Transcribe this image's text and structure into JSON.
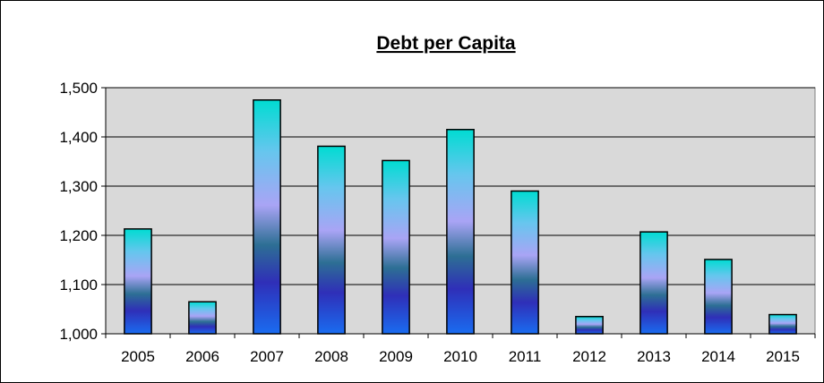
{
  "chart_data": {
    "type": "bar",
    "title": "Debt per Capita",
    "xlabel": "",
    "ylabel": "",
    "categories": [
      "2005",
      "2006",
      "2007",
      "2008",
      "2009",
      "2010",
      "2011",
      "2012",
      "2013",
      "2014",
      "2015"
    ],
    "series": [
      {
        "values": [
          1213,
          1065,
          1475,
          1381,
          1352,
          1415,
          1290,
          1035,
          1207,
          1151,
          1039
        ]
      }
    ],
    "ylim": [
      1000,
      1500
    ],
    "yticks": [
      1000,
      1100,
      1200,
      1300,
      1400,
      1500
    ],
    "ytick_labels": [
      "1,000",
      "1,100",
      "1,200",
      "1,300",
      "1,400",
      "1,500"
    ],
    "grid": true,
    "legend": "none",
    "colors": {
      "plot_background": "#d9d9d9",
      "gradient": [
        "#1a6cf0",
        "#2f2fb8",
        "#2d6f94",
        "#a9a4f5",
        "#66c6ee",
        "#00dcd2"
      ],
      "bar_outline": "#000000"
    }
  }
}
